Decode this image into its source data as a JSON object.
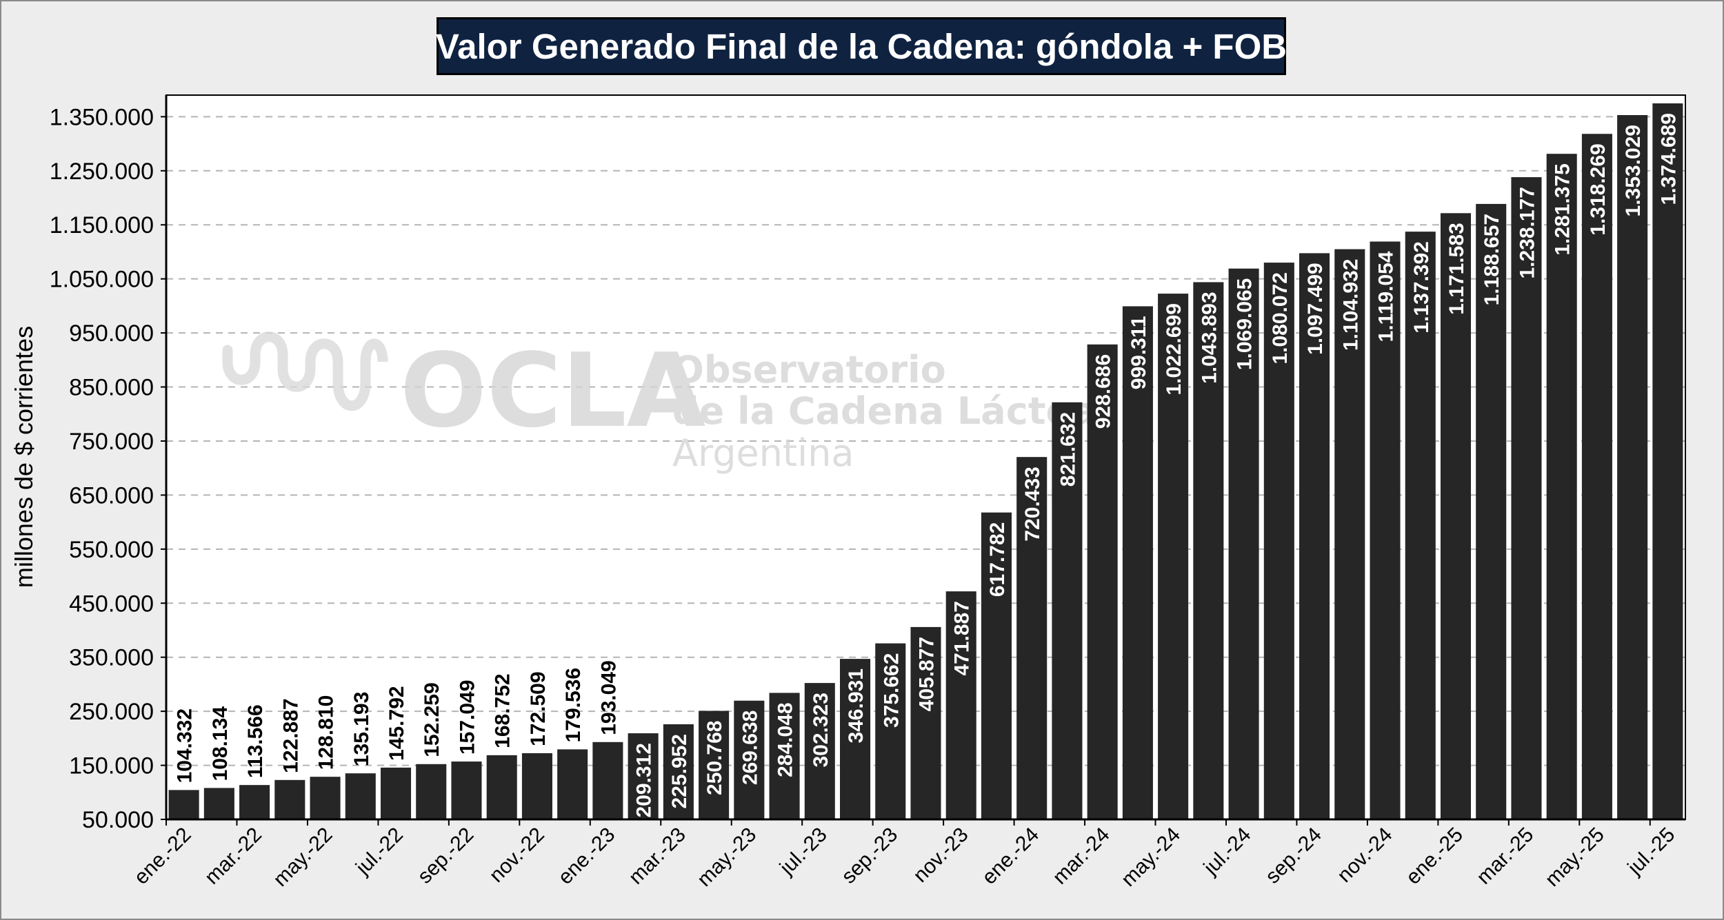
{
  "chart_data": {
    "type": "bar",
    "title": "Valor Generado Final de la Cadena: góndola + FOB",
    "ylabel": "millones de $ corrientes",
    "xlabel": "",
    "ylim": [
      50000,
      1390000
    ],
    "yticks": [
      50000,
      150000,
      250000,
      350000,
      450000,
      550000,
      650000,
      750000,
      850000,
      950000,
      1050000,
      1150000,
      1250000,
      1350000
    ],
    "ytick_labels": [
      "50.000",
      "150.000",
      "250.000",
      "350.000",
      "450.000",
      "550.000",
      "650.000",
      "750.000",
      "850.000",
      "950.000",
      "1.050.000",
      "1.150.000",
      "1.250.000",
      "1.350.000"
    ],
    "grid": "horizontal dashed",
    "legend": "none",
    "categories": [
      "ene.-22",
      "feb.-22",
      "mar.-22",
      "abr.-22",
      "may.-22",
      "jun.-22",
      "jul.-22",
      "ago.-22",
      "sep.-22",
      "oct.-22",
      "nov.-22",
      "dic.-22",
      "ene.-23",
      "feb.-23",
      "mar.-23",
      "abr.-23",
      "may.-23",
      "jun.-23",
      "jul.-23",
      "ago.-23",
      "sep.-23",
      "oct.-23",
      "nov.-23",
      "dic.-23",
      "ene.-24",
      "feb.-24",
      "mar.-24",
      "abr.-24",
      "may.-24",
      "jun.-24",
      "jul.-24",
      "ago.-24",
      "sep.-24",
      "oct.-24",
      "nov.-24",
      "dic.-24",
      "ene.-25",
      "feb.-25",
      "mar.-25",
      "abr.-25",
      "may.-25",
      "jun.-25",
      "jul.-25"
    ],
    "xtick_labels": [
      "ene.-22",
      "mar.-22",
      "may.-22",
      "jul.-22",
      "sep.-22",
      "nov.-22",
      "ene.-23",
      "mar.-23",
      "may.-23",
      "jul.-23",
      "sep.-23",
      "nov.-23",
      "ene.-24",
      "mar.-24",
      "may.-24",
      "jul.-24",
      "sep.-24",
      "nov.-24",
      "ene.-25",
      "mar.-25",
      "may.-25",
      "jul.-25"
    ],
    "values": [
      104332,
      108134,
      113566,
      122887,
      128810,
      135193,
      145792,
      152259,
      157049,
      168752,
      172509,
      179536,
      193049,
      209312,
      225952,
      250768,
      269638,
      284048,
      302323,
      346931,
      375662,
      405877,
      471887,
      617782,
      720433,
      821632,
      928686,
      999311,
      1022699,
      1043893,
      1069065,
      1080072,
      1097499,
      1104932,
      1119054,
      1137392,
      1171583,
      1188657,
      1238177,
      1281375,
      1318269,
      1353029,
      1374689
    ],
    "value_labels": [
      "104.332",
      "108.134",
      "113.566",
      "122.887",
      "128.810",
      "135.193",
      "145.792",
      "152.259",
      "157.049",
      "168.752",
      "172.509",
      "179.536",
      "193.049",
      "209.312",
      "225.952",
      "250.768",
      "269.638",
      "284.048",
      "302.323",
      "346.931",
      "375.662",
      "405.877",
      "471.887",
      "617.782",
      "720.433",
      "821.632",
      "928.686",
      "999.311",
      "1.022.699",
      "1.043.893",
      "1.069.065",
      "1.080.072",
      "1.097.499",
      "1.104.932",
      "1.119.054",
      "1.137.392",
      "1.171.583",
      "1.188.657",
      "1.238.177",
      "1.281.375",
      "1.318.269",
      "1.353.029",
      "1.374.689"
    ],
    "label_inside_from_index": 13,
    "colors": {
      "bar": "#262626",
      "label_outside": "#000000",
      "label_inside": "#ffffff",
      "title_bg": "#0f2240",
      "background": "#ededed",
      "grid": "#b4b4b4"
    }
  },
  "watermark": {
    "logo_text": "OCLA",
    "line1": "Observatorio",
    "line2": "de la Cadena Láctea",
    "line3": "Argentina"
  }
}
